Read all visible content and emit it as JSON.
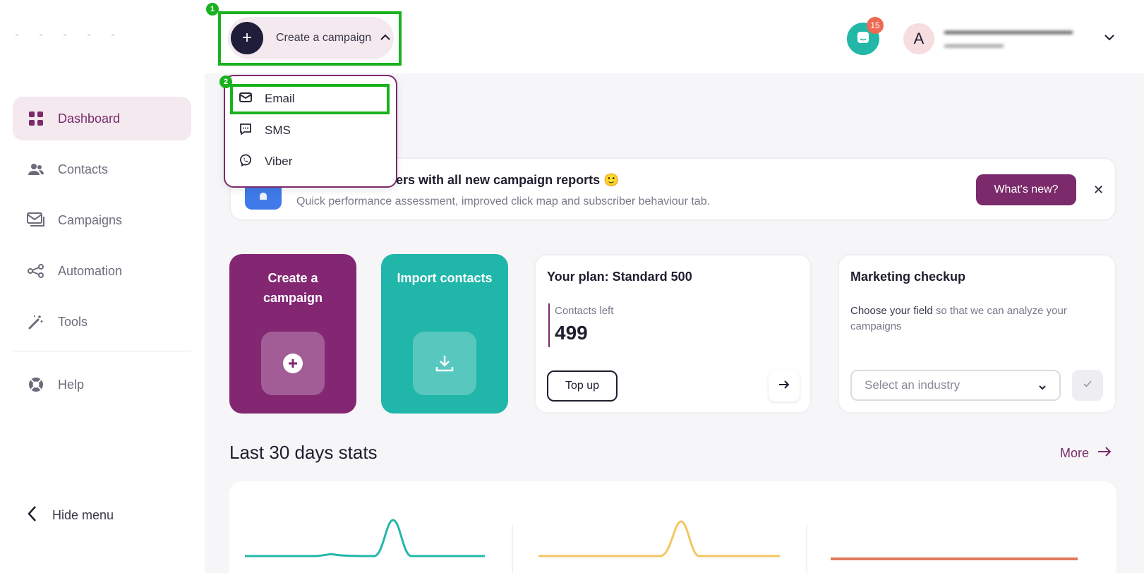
{
  "sidebar": {
    "items": [
      {
        "label": "Dashboard",
        "icon": "grid-icon",
        "active": true
      },
      {
        "label": "Contacts",
        "icon": "users-icon"
      },
      {
        "label": "Campaigns",
        "icon": "campaigns-icon"
      },
      {
        "label": "Automation",
        "icon": "automation-icon"
      },
      {
        "label": "Tools",
        "icon": "magic-wand-icon"
      }
    ],
    "help_label": "Help",
    "hide_menu_label": "Hide menu"
  },
  "topbar": {
    "create_label": "Create a campaign",
    "notifications_count": "15",
    "avatar_letter": "A"
  },
  "dropdown": {
    "items": [
      {
        "label": "Email",
        "icon": "mail-icon"
      },
      {
        "label": "SMS",
        "icon": "sms-icon"
      },
      {
        "label": "Viber",
        "icon": "viber-icon"
      }
    ]
  },
  "annotations": {
    "step1": "1",
    "step2": "2"
  },
  "banner": {
    "title": "ut your subscribers with all new campaign reports 🙂",
    "subtitle": "Quick performance assessment, improved click map and subscriber behaviour tab.",
    "cta": "What's new?",
    "close": "✕"
  },
  "cards": {
    "create": "Create a campaign",
    "import": "Import contacts",
    "plan": {
      "title": "Your plan: Standard 500",
      "contacts_label": "Contacts left",
      "contacts_value": "499",
      "topup": "Top up"
    },
    "checkup": {
      "title": "Marketing checkup",
      "desc_strong": "Choose your field",
      "desc_rest": " so that we can analyze your campaigns",
      "select_placeholder": "Select an industry"
    }
  },
  "stats": {
    "title": "Last 30 days stats",
    "more": "More"
  },
  "colors": {
    "brand": "#7b2a6b",
    "teal": "#20b6aa",
    "annotation": "#19b21f",
    "sparkline_teal": "#23b7a8",
    "sparkline_yellow": "#f2c760",
    "sparkline_red": "#e07a5f"
  }
}
